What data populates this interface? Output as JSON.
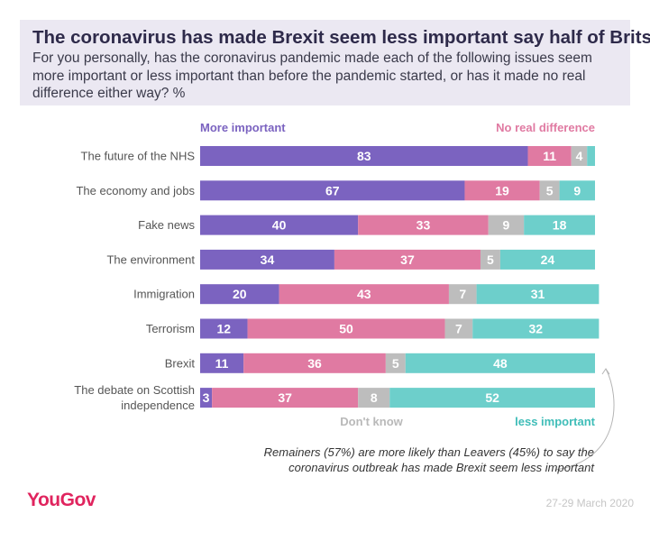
{
  "title": "The coronavirus has made Brexit seem less important say half of Brits",
  "subtitle": "For you personally, has the coronavirus pandemic made each of the following issues seem more important or less important than before the pandemic started, or has it made no real difference either way? %",
  "note": "Remainers (57%) are more likely than Leavers (45%) to say the coronavirus outbreak has made Brexit seem less important",
  "brand": "YouGov",
  "date": "27-29 March 2020",
  "chart_data": {
    "type": "bar",
    "orientation": "horizontal",
    "stacked": true,
    "categories": [
      "The future of the NHS",
      "The economy and jobs",
      "Fake news",
      "The environment",
      "Immigration",
      "Terrorism",
      "Brexit",
      "The debate on Scottish independence"
    ],
    "series": [
      {
        "name": "More important",
        "color": "#7b63c0",
        "values": [
          83,
          67,
          40,
          34,
          20,
          12,
          11,
          3
        ]
      },
      {
        "name": "No real difference",
        "color": "#e07aa2",
        "values": [
          11,
          19,
          33,
          37,
          43,
          50,
          36,
          37
        ]
      },
      {
        "name": "Don't know",
        "color": "#bdbdbd",
        "values": [
          4,
          5,
          9,
          5,
          7,
          7,
          5,
          8
        ]
      },
      {
        "name": "less important",
        "color": "#6dcfcb",
        "values": [
          2,
          9,
          18,
          24,
          31,
          32,
          48,
          52
        ]
      }
    ],
    "value_labels": [
      [
        "83",
        "11",
        "4",
        ""
      ],
      [
        "67",
        "19",
        "5",
        "9"
      ],
      [
        "40",
        "33",
        "9",
        "18"
      ],
      [
        "34",
        "37",
        "5",
        "24"
      ],
      [
        "20",
        "43",
        "7",
        "31"
      ],
      [
        "12",
        "50",
        "7",
        "32"
      ],
      [
        "11",
        "36",
        "5",
        "48"
      ],
      [
        "3",
        "37",
        "8",
        "52"
      ]
    ],
    "xlim": [
      0,
      100
    ],
    "legend_placement": "top-left/top-right and bottom-left/bottom-right labels"
  }
}
